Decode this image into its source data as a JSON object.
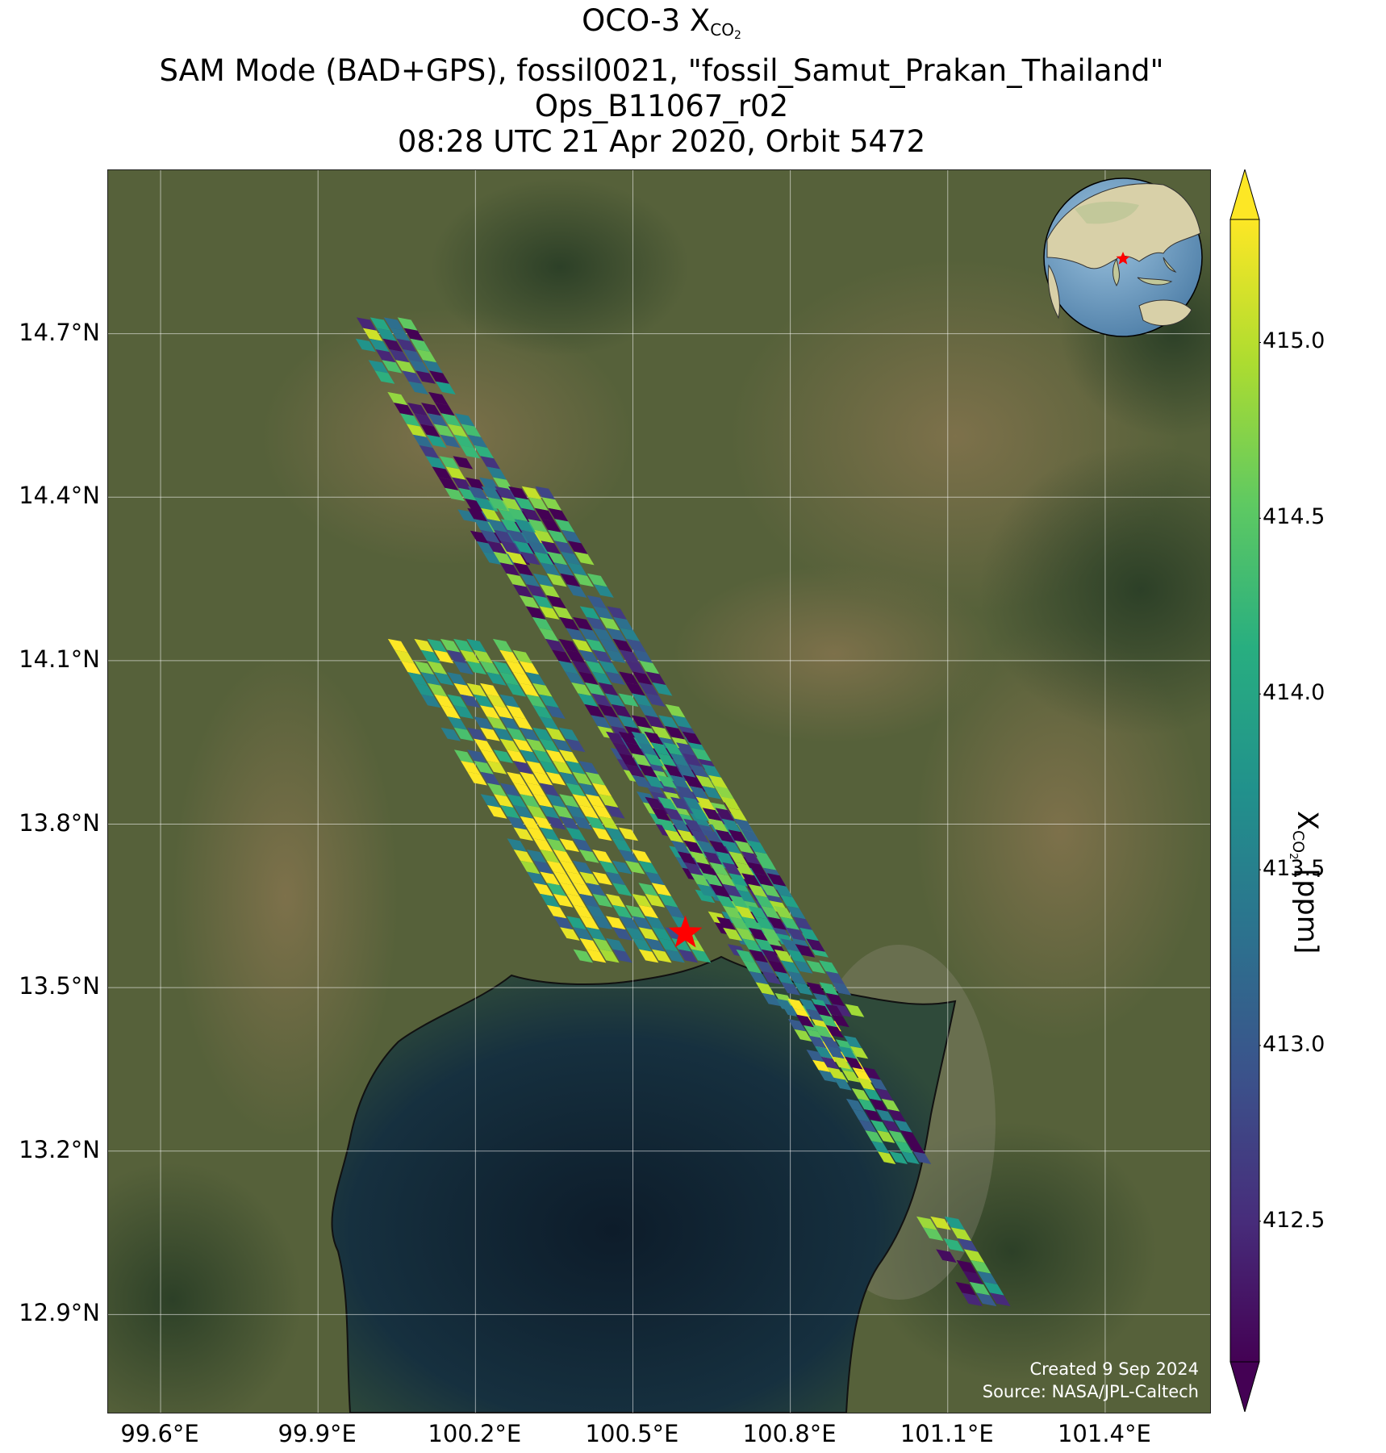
{
  "title": {
    "line1_prefix": "OCO-3 X",
    "line1_sub": "CO",
    "line1_subsub": "2",
    "line2": "SAM Mode (BAD+GPS), fossil0021, \"fossil_Samut_Prakan_Thailand\"",
    "line3": "Ops_B11067_r02",
    "line4": "08:28 UTC 21 Apr 2020, Orbit 5472"
  },
  "map": {
    "lon_range": [
      99.5,
      101.6
    ],
    "lat_range": [
      12.72,
      15.0
    ],
    "x_ticks": [
      "99.6°E",
      "99.9°E",
      "100.2°E",
      "100.5°E",
      "100.8°E",
      "101.1°E",
      "101.4°E"
    ],
    "x_tick_values": [
      99.6,
      99.9,
      100.2,
      100.5,
      100.8,
      101.1,
      101.4
    ],
    "y_ticks": [
      "14.7°N",
      "14.4°N",
      "14.1°N",
      "13.8°N",
      "13.5°N",
      "13.2°N",
      "12.9°N"
    ],
    "y_tick_values": [
      14.7,
      14.4,
      14.1,
      13.8,
      13.5,
      13.2,
      12.9
    ],
    "target_marker": {
      "lon": 100.6,
      "lat": 13.6,
      "icon": "red-star-icon",
      "color": "#ff0000"
    },
    "background": {
      "land": "#4f5d34",
      "land_brown": "#7a6a44",
      "sea": "#13283a",
      "coast": "#1a1a1a"
    }
  },
  "footprints": {
    "swaths": [
      {
        "lat_start": 14.73,
        "lat_end": 14.28,
        "cross_min": -0.05,
        "cross_max": 0.08
      },
      {
        "lat_start": 14.42,
        "lat_end": 13.56,
        "cross_min": -0.08,
        "cross_max": 0.1
      },
      {
        "lat_start": 13.97,
        "lat_end": 13.45,
        "cross_min": -0.07,
        "cross_max": 0.1
      },
      {
        "lat_start": 14.14,
        "lat_end": 13.55,
        "cross_min": -0.38,
        "cross_max": -0.13
      },
      {
        "lat_start": 13.48,
        "lat_end": 13.33,
        "cross_min": -0.05,
        "cross_max": 0.04
      },
      {
        "lat_start": 13.47,
        "lat_end": 13.18,
        "cross_min": -0.03,
        "cross_max": 0.06
      },
      {
        "lat_start": 13.08,
        "lat_end": 12.92,
        "cross_min": -0.03,
        "cross_max": 0.05
      }
    ]
  },
  "colorbar": {
    "colormap": "viridis",
    "range": [
      412.1,
      415.35
    ],
    "ticks": [
      "412.5",
      "413.0",
      "413.5",
      "414.0",
      "414.5",
      "415.0"
    ],
    "tick_values": [
      412.5,
      413.0,
      413.5,
      414.0,
      414.5,
      415.0
    ],
    "label_prefix": "X",
    "label_sub": "CO",
    "label_subsub": "2",
    "label_suffix": " [ppm]",
    "extend": "both"
  },
  "inset": {
    "icon": "globe-locator-icon",
    "marker_color": "#ff0000"
  },
  "credits": {
    "created": "Created 9 Sep 2024",
    "source": "Source: NASA/JPL-Caltech"
  }
}
